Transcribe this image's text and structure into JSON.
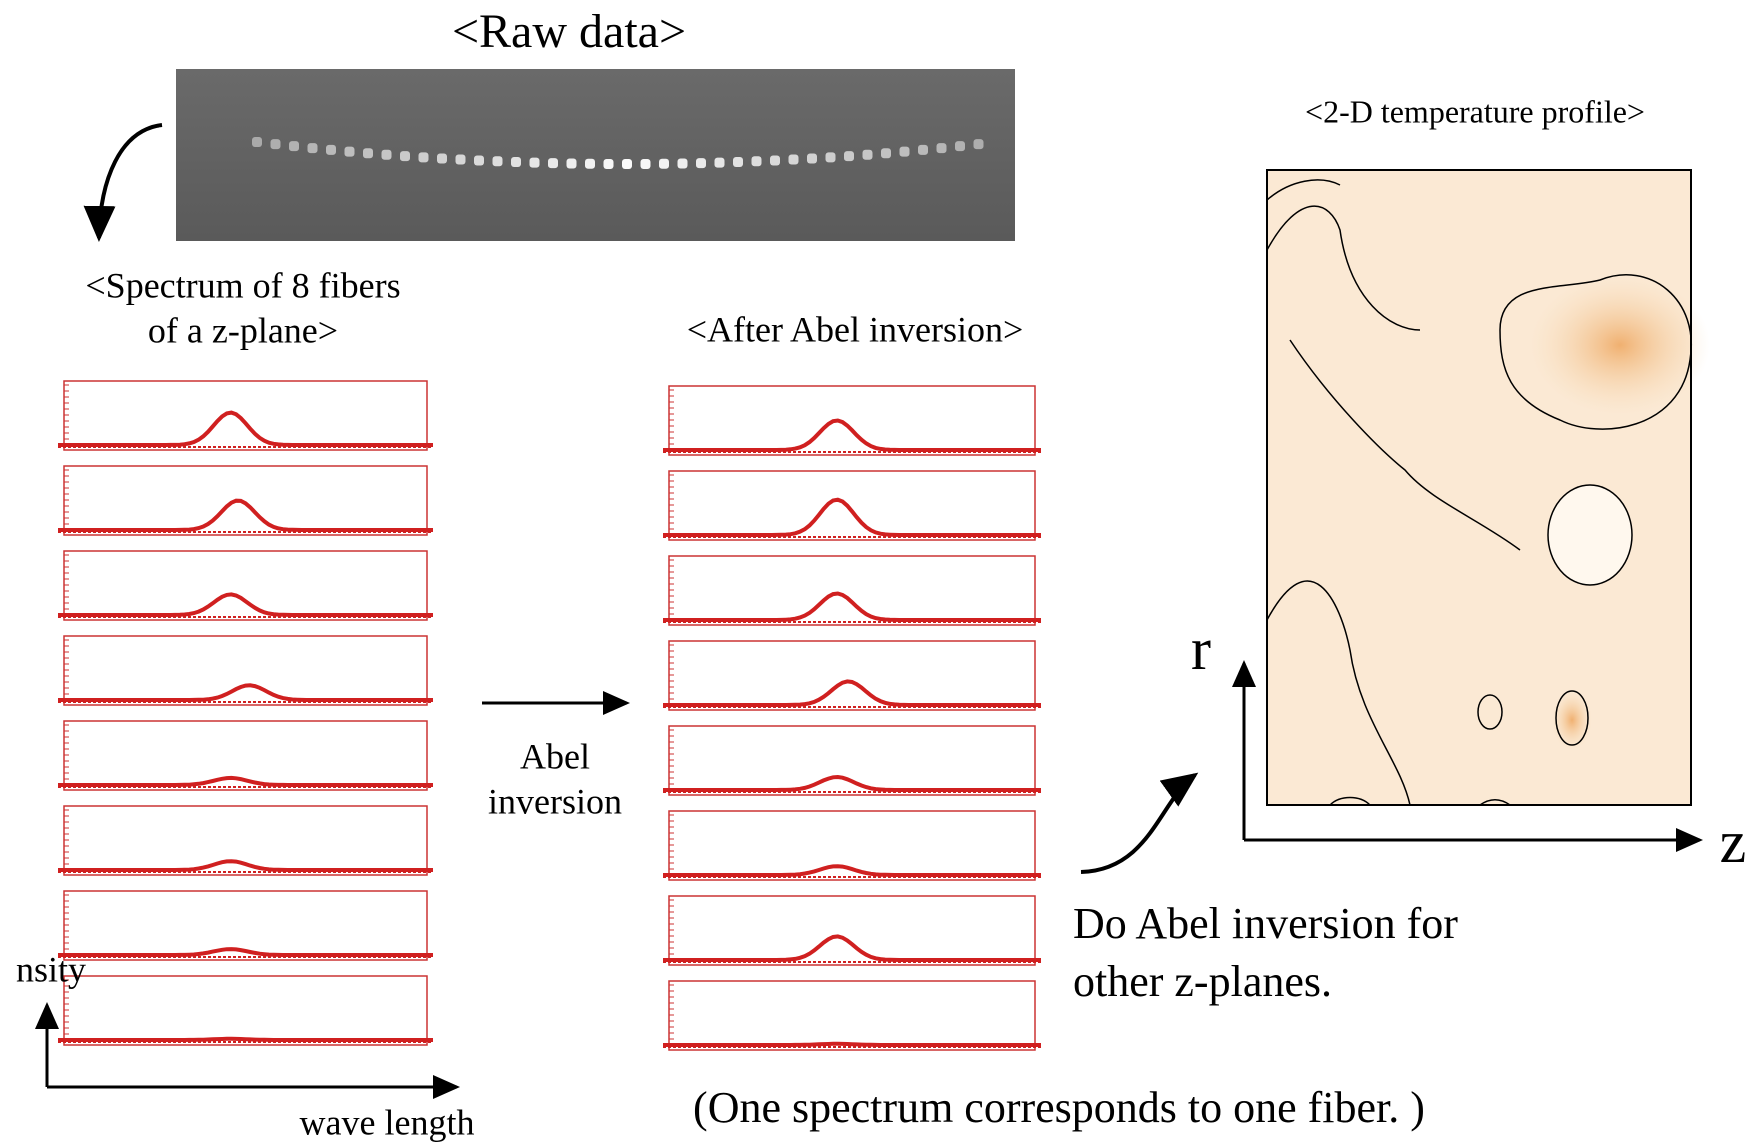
{
  "raw": {
    "title": "<Raw data>"
  },
  "profile": {
    "title": "<2-D temperature profile>",
    "r_label": "r",
    "z_label": "z"
  },
  "spectrum": {
    "title_line1": "<Spectrum of 8 fibers",
    "title_line2": "of a z-plane>",
    "y_label": "nsity",
    "x_label": "wave length"
  },
  "abel": {
    "title": "<After Abel inversion>",
    "arrow_line1": "Abel",
    "arrow_line2": "inversion"
  },
  "note": {
    "line1": "Do Abel inversion for",
    "line2": "other z-planes."
  },
  "caption": "(One spectrum corresponds to one fiber. )"
}
